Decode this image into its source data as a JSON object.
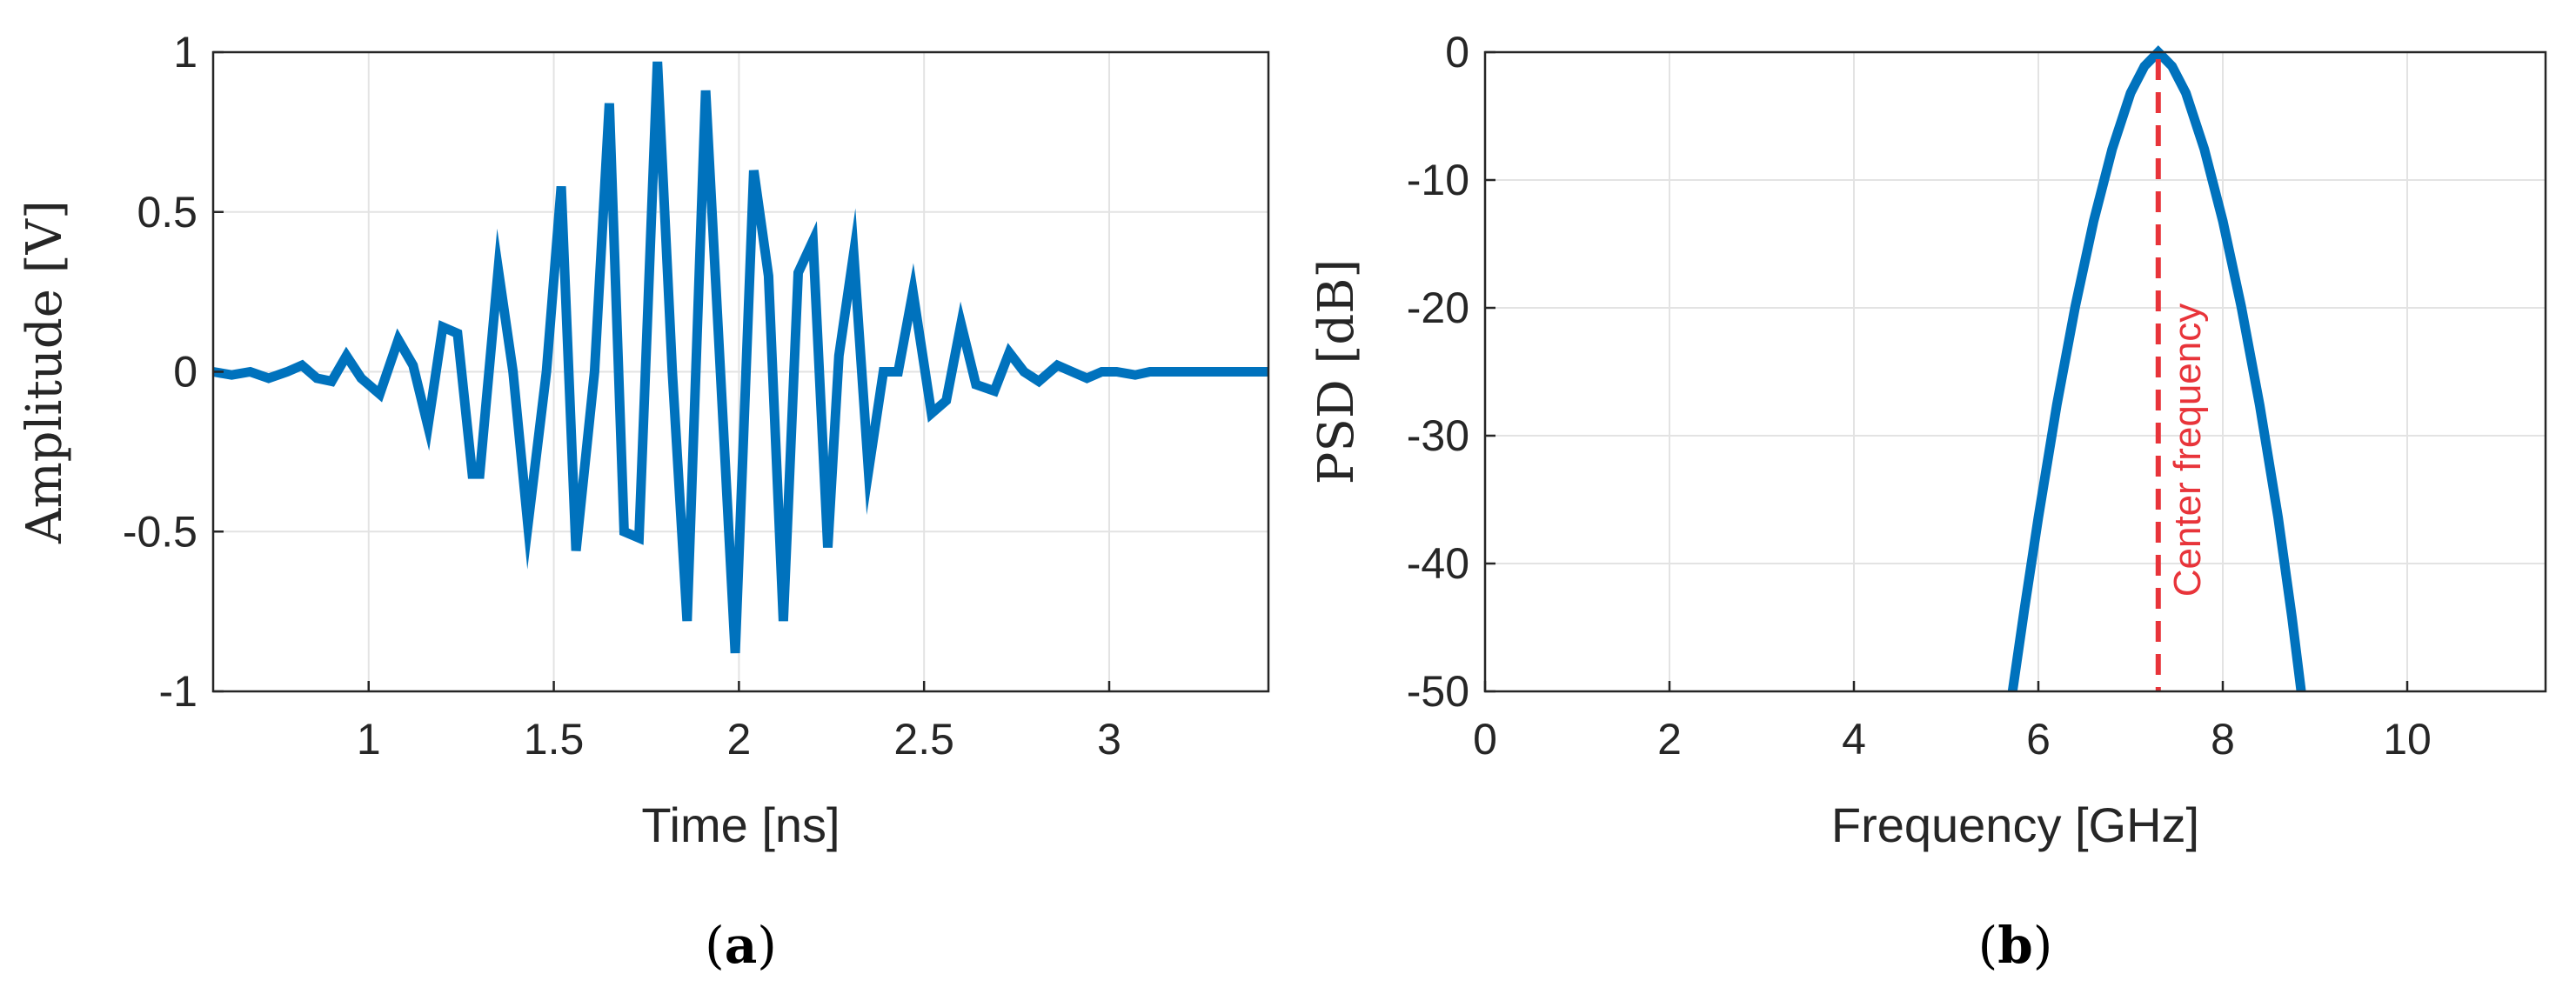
{
  "chart_data": [
    {
      "id": "a",
      "type": "line",
      "caption_letter": "a",
      "xlabel": "Time [ns]",
      "ylabel": "Amplitude [V]",
      "xlim": [
        0.58,
        3.43
      ],
      "ylim": [
        -1,
        1
      ],
      "xticks": [
        1,
        1.5,
        2,
        2.5,
        3
      ],
      "xticklabels": [
        "1",
        "1.5",
        "2",
        "2.5",
        "3"
      ],
      "yticks": [
        -1,
        -0.5,
        0,
        0.5,
        1
      ],
      "yticklabels": [
        "-1",
        "-0.5",
        "0",
        "0.5",
        "1"
      ],
      "grid": true,
      "line_color": "#0072BD",
      "series": [
        {
          "x": [
            0.58,
            0.63,
            0.68,
            0.73,
            0.78,
            0.82,
            0.86,
            0.9,
            0.94,
            0.98,
            1.03,
            1.08,
            1.12,
            1.16,
            1.2,
            1.24,
            1.28,
            1.3,
            1.35,
            1.39,
            1.43,
            1.48,
            1.52,
            1.56,
            1.61,
            1.65,
            1.69,
            1.73,
            1.78,
            1.82,
            1.86,
            1.91,
            1.95,
            1.99,
            2.04,
            2.08,
            2.12,
            2.16,
            2.2,
            2.24,
            2.27,
            2.31,
            2.35,
            2.39,
            2.43,
            2.47,
            2.52,
            2.56,
            2.6,
            2.64,
            2.69,
            2.73,
            2.77,
            2.81,
            2.86,
            2.9,
            2.94,
            2.98,
            3.02,
            3.07,
            3.11,
            3.15,
            3.2,
            3.3,
            3.43
          ],
          "y": [
            0.0,
            -0.01,
            0.0,
            -0.02,
            0.0,
            0.02,
            -0.02,
            -0.03,
            0.05,
            -0.02,
            -0.07,
            0.1,
            0.02,
            -0.17,
            0.14,
            0.12,
            -0.32,
            -0.32,
            0.32,
            0.0,
            -0.48,
            0.0,
            0.58,
            -0.56,
            0.0,
            0.84,
            -0.5,
            -0.52,
            0.97,
            0.0,
            -0.78,
            0.88,
            0.0,
            -0.88,
            0.63,
            0.3,
            -0.78,
            0.31,
            0.41,
            -0.55,
            0.05,
            0.37,
            -0.31,
            0.0,
            0.0,
            0.25,
            -0.13,
            -0.09,
            0.15,
            -0.04,
            -0.06,
            0.06,
            0.0,
            -0.03,
            0.02,
            0.0,
            -0.02,
            0.0,
            0.0,
            -0.01,
            0.0,
            0.0,
            0.0,
            0.0,
            0.0
          ]
        }
      ]
    },
    {
      "id": "b",
      "type": "line",
      "caption_letter": "b",
      "xlabel": "Frequency [GHz]",
      "ylabel": "PSD [dB]",
      "xlim": [
        0,
        11.5
      ],
      "ylim": [
        -50,
        0
      ],
      "xticks": [
        0,
        2,
        4,
        6,
        8,
        10
      ],
      "xticklabels": [
        "0",
        "2",
        "4",
        "6",
        "8",
        "10"
      ],
      "yticks": [
        -50,
        -40,
        -30,
        -20,
        -10,
        0
      ],
      "yticklabels": [
        "-50",
        "-40",
        "-30",
        "-20",
        "-10",
        "0"
      ],
      "grid": true,
      "line_color": "#0072BD",
      "center_frequency": 7.3,
      "marker_color": "#E8343A",
      "annotation": "Center frequency",
      "series": [
        {
          "x": [
            5.72,
            5.85,
            6.0,
            6.2,
            6.4,
            6.6,
            6.8,
            7.0,
            7.15,
            7.3,
            7.45,
            7.6,
            7.8,
            8.0,
            8.2,
            8.4,
            8.6,
            8.75,
            8.85
          ],
          "y": [
            -50,
            -43.5,
            -36.4,
            -27.6,
            -19.9,
            -13.2,
            -7.6,
            -3.2,
            -1.1,
            0,
            -1.1,
            -3.2,
            -7.6,
            -13.2,
            -19.9,
            -27.6,
            -36.4,
            -44.2,
            -50
          ]
        }
      ]
    }
  ]
}
